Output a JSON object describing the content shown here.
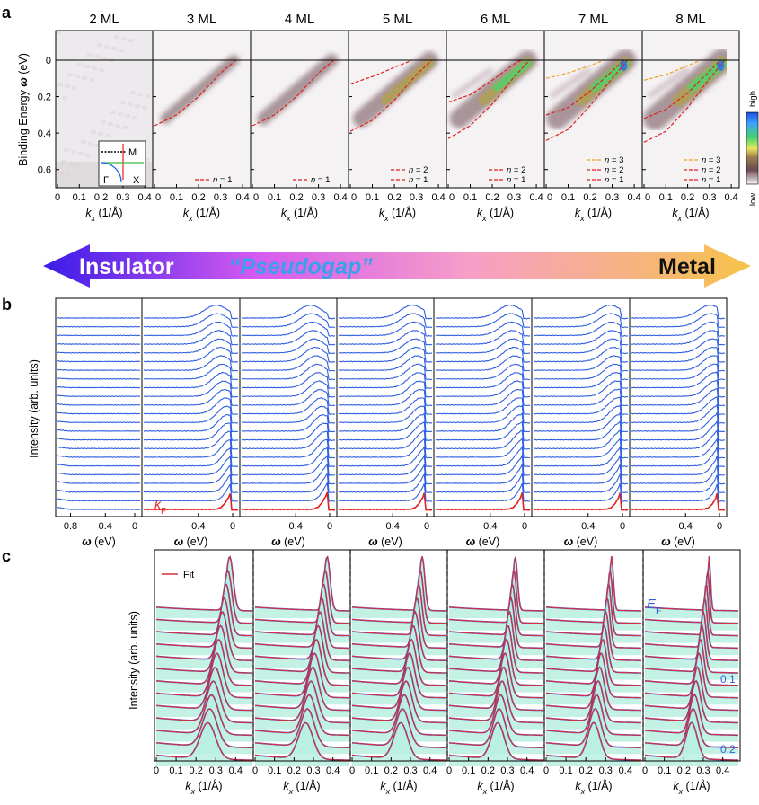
{
  "chart_data": [
    {
      "panel": "a",
      "type": "heatmap",
      "thickness_labels": [
        "2 ML",
        "3 ML",
        "4 ML",
        "5 ML",
        "6 ML",
        "7 ML",
        "8 ML"
      ],
      "ylabel": "Binding Energy ω (eV)",
      "y_ticks": [
        "0",
        "0.2",
        "0.4",
        "0.6"
      ],
      "ylim": [
        0,
        0.7
      ],
      "xlabel": "kx (1/Å)",
      "x_ticks": [
        "0",
        "0.1",
        "0.2",
        "0.3",
        "0.4"
      ],
      "xlim": [
        0,
        0.42
      ],
      "colorbar": {
        "high": "high",
        "low": "low"
      },
      "inset_labels": [
        "M",
        "Γ",
        "X"
      ],
      "bands": [
        {
          "panel": "2 ML",
          "legend": []
        },
        {
          "panel": "3 ML",
          "legend": [
            "n = 1"
          ],
          "n1": [
            [
              0,
              0.36
            ],
            [
              0.1,
              0.3
            ],
            [
              0.2,
              0.2
            ],
            [
              0.3,
              0.07
            ],
            [
              0.37,
              0
            ]
          ]
        },
        {
          "panel": "4 ML",
          "legend": [
            "n = 1"
          ],
          "n1": [
            [
              0,
              0.36
            ],
            [
              0.1,
              0.3
            ],
            [
              0.2,
              0.2
            ],
            [
              0.3,
              0.07
            ],
            [
              0.37,
              0
            ]
          ]
        },
        {
          "panel": "5 ML",
          "legend": [
            "n = 2",
            "n = 1"
          ],
          "n2": [
            [
              0,
              0.13
            ],
            [
              0.1,
              0.09
            ],
            [
              0.2,
              0.04
            ],
            [
              0.28,
              0
            ]
          ],
          "n1": [
            [
              0,
              0.39
            ],
            [
              0.1,
              0.33
            ],
            [
              0.2,
              0.22
            ],
            [
              0.3,
              0.08
            ],
            [
              0.37,
              0
            ]
          ]
        },
        {
          "panel": "6 ML",
          "legend": [
            "n = 2",
            "n = 1"
          ],
          "n2": [
            [
              0,
              0.23
            ],
            [
              0.1,
              0.19
            ],
            [
              0.2,
              0.11
            ],
            [
              0.3,
              0.02
            ],
            [
              0.33,
              0
            ]
          ],
          "n1": [
            [
              0,
              0.43
            ],
            [
              0.1,
              0.36
            ],
            [
              0.2,
              0.24
            ],
            [
              0.3,
              0.09
            ],
            [
              0.37,
              0
            ]
          ]
        },
        {
          "panel": "7 ML",
          "legend": [
            "n = 3",
            "n = 2",
            "n = 1"
          ],
          "n3": [
            [
              0,
              0.1
            ],
            [
              0.1,
              0.07
            ],
            [
              0.2,
              0.03
            ],
            [
              0.26,
              0
            ]
          ],
          "n2": [
            [
              0,
              0.3
            ],
            [
              0.1,
              0.26
            ],
            [
              0.2,
              0.17
            ],
            [
              0.3,
              0.06
            ],
            [
              0.35,
              0
            ]
          ],
          "n1": [
            [
              0,
              0.44
            ],
            [
              0.1,
              0.38
            ],
            [
              0.2,
              0.25
            ],
            [
              0.3,
              0.1
            ],
            [
              0.37,
              0
            ]
          ]
        },
        {
          "panel": "8 ML",
          "legend": [
            "n = 3",
            "n = 2",
            "n = 1"
          ],
          "n3": [
            [
              0,
              0.11
            ],
            [
              0.1,
              0.08
            ],
            [
              0.2,
              0.03
            ],
            [
              0.26,
              0
            ]
          ],
          "n2": [
            [
              0,
              0.32
            ],
            [
              0.1,
              0.27
            ],
            [
              0.2,
              0.18
            ],
            [
              0.3,
              0.06
            ],
            [
              0.35,
              0
            ]
          ],
          "n1": [
            [
              0,
              0.45
            ],
            [
              0.1,
              0.39
            ],
            [
              0.2,
              0.26
            ],
            [
              0.3,
              0.1
            ],
            [
              0.37,
              0
            ]
          ]
        }
      ]
    },
    {
      "panel": "arrow",
      "type": "other",
      "labels": {
        "left": "Insulator",
        "middle": "“Pseudogap”",
        "right": "Metal"
      }
    },
    {
      "panel": "b",
      "type": "line",
      "ylabel": "Intensity (arb. units)",
      "xlabel": "ω (eV)",
      "x_ticks_first": [
        "0.8",
        "0.4",
        "0"
      ],
      "x_ticks": [
        "0.4",
        "0"
      ],
      "curves_per_panel": 23,
      "kf_label": "k",
      "kf_subscript": "F",
      "peak_energy_eV": [
        null,
        0.22,
        0.25,
        0.2,
        0.2,
        0.18,
        0.15
      ],
      "edge_weight": [
        0,
        0.3,
        0.6,
        0.85,
        1.0,
        1.1,
        1.2
      ]
    },
    {
      "panel": "c",
      "type": "line",
      "ylabel": "Intensity (arb. units)",
      "xlabel": "kx (1/Å)",
      "x_ticks": [
        "0",
        "0.1",
        "0.2",
        "0.3",
        "0.4"
      ],
      "fit_legend": "Fit",
      "ef_label": "E",
      "ef_subscript": "F",
      "energy_markers": [
        "0.1",
        "0.2"
      ],
      "curves_per_panel": 13,
      "peak_k_top": [
        0.37,
        0.37,
        0.36,
        0.34,
        0.33,
        0.33
      ],
      "peak_k_bottom": [
        0.26,
        0.26,
        0.25,
        0.25,
        0.24,
        0.24
      ]
    }
  ],
  "panel_letters": {
    "a": "a",
    "b": "b",
    "c": "c"
  },
  "colors": {
    "edc": "#2f5fe0",
    "kf": "#e0201e",
    "fit": "#d7303a",
    "fill": "#b9f0e0"
  }
}
